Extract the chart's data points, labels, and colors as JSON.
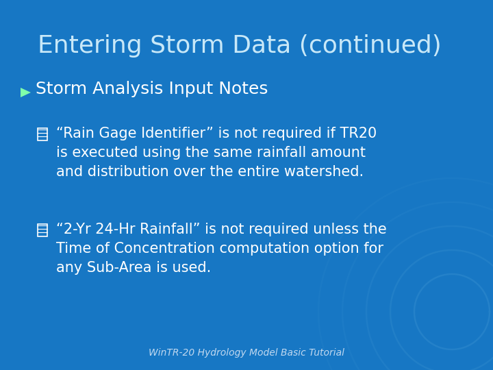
{
  "title": "Entering Storm Data (continued)",
  "bg_color": "#1777c4",
  "text_color": "#ffffff",
  "title_color": "#c8e8f8",
  "bullet_color": "#7fffaa",
  "bullet1_label": "Storm Analysis Input Notes",
  "sub_bullet_marker": "▣",
  "sub1_lines": [
    "“Rain Gage Identifier” is not required if TR20",
    "is executed using the same rainfall amount",
    "and distribution over the entire watershed."
  ],
  "sub2_lines": [
    "“2-Yr 24-Hr Rainfall” is not required unless the",
    "Time of Concentration computation option for",
    "any Sub-Area is used."
  ],
  "footer": "WinTR-20 Hydrology Model Basic Tutorial",
  "footer_color": "#c0d8f0",
  "title_fontsize": 26,
  "bullet_fontsize": 18,
  "sub_fontsize": 15,
  "footer_fontsize": 10
}
